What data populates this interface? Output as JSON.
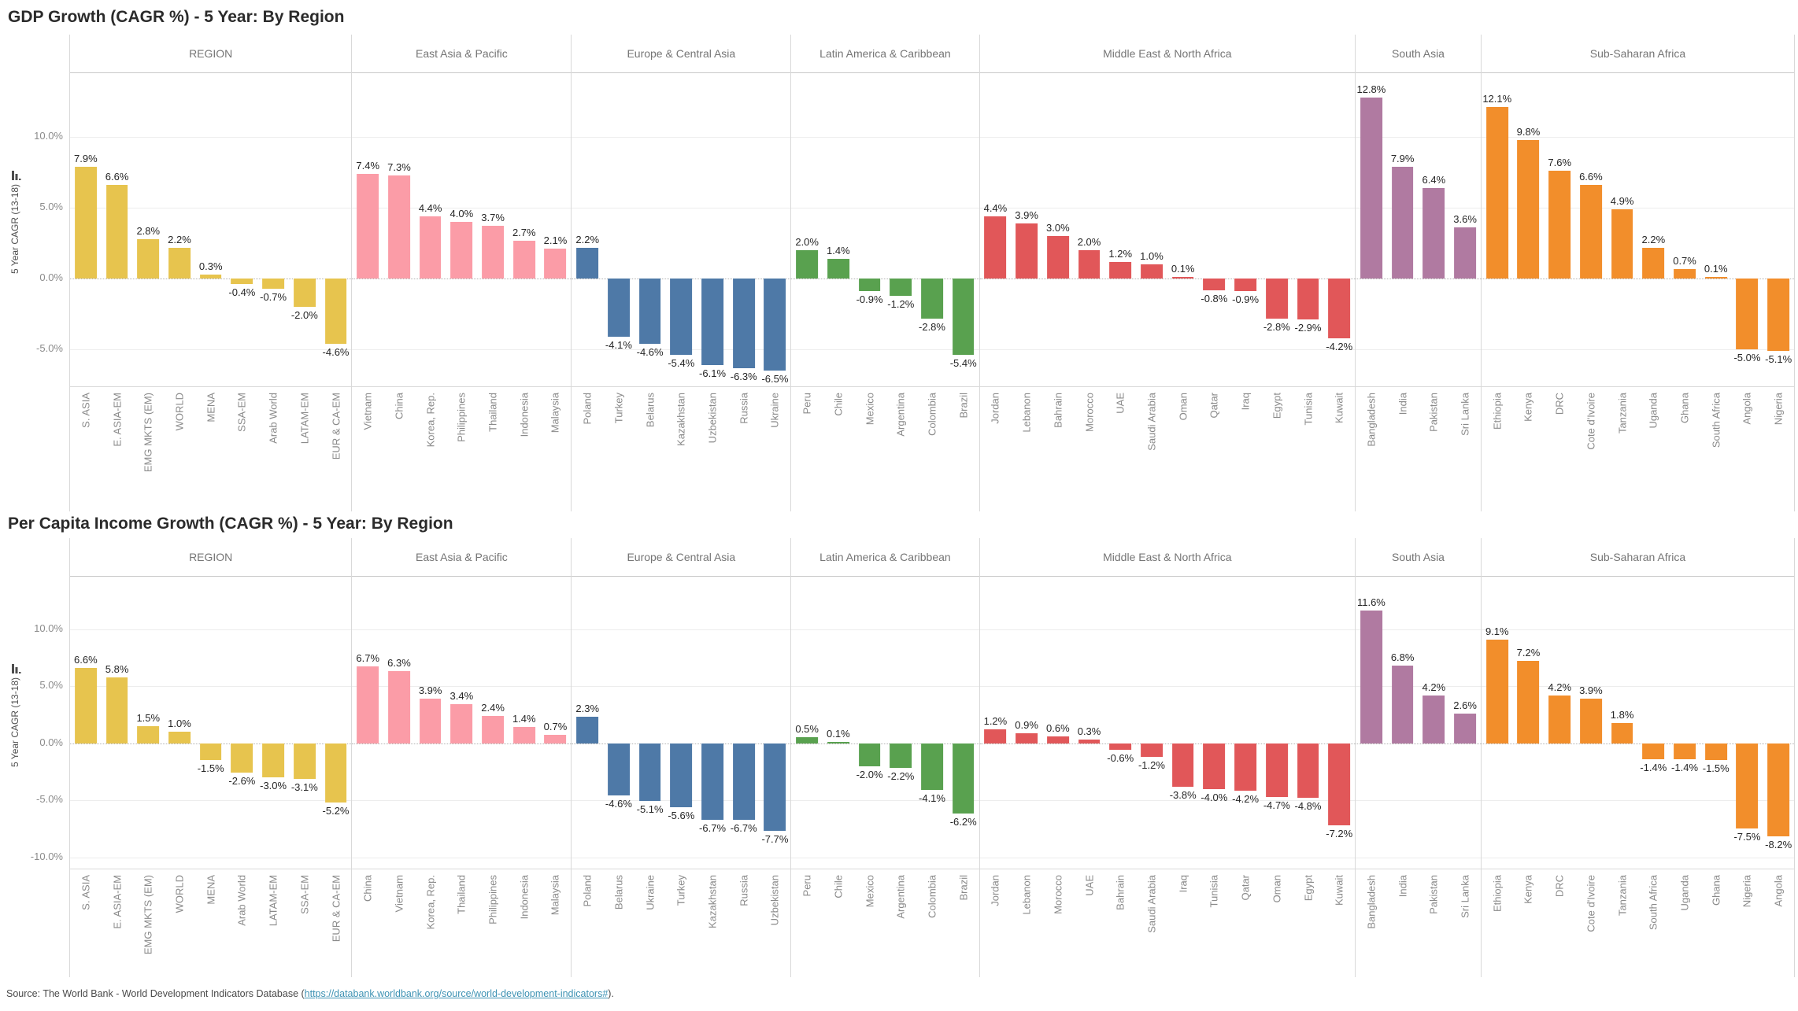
{
  "footer": {
    "prefix": "Source: The World Bank - World Development Indicators Database (",
    "link": "https://databank.worldbank.org/source/world-development-indicators#",
    "suffix": ")."
  },
  "chart_data": [
    {
      "type": "bar",
      "title": "GDP Growth (CAGR %) - 5 Year: By Region",
      "ylabel": "5 Year CAGR (13-18)",
      "ylim": [
        -7.6,
        14.5
      ],
      "grid": true,
      "y_ticks": [
        {
          "value": 10,
          "label": "10.0%"
        },
        {
          "value": 5,
          "label": "5.0%"
        },
        {
          "value": 0,
          "label": "0.0%"
        },
        {
          "value": -5,
          "label": "-5.0%"
        }
      ],
      "groups": [
        {
          "name": "REGION",
          "color": "#E7C44E",
          "categories": [
            "S. ASIA",
            "E. ASIA-EM",
            "EMG MKTS (EM)",
            "WORLD",
            "MENA",
            "SSA-EM",
            "Arab World",
            "LATAM-EM",
            "EUR & CA-EM"
          ],
          "values": [
            7.9,
            6.6,
            2.8,
            2.2,
            0.3,
            -0.4,
            -0.7,
            -2.0,
            -4.6
          ]
        },
        {
          "name": "East Asia & Pacific",
          "color": "#FB9CA7",
          "categories": [
            "Vietnam",
            "China",
            "Korea, Rep.",
            "Philippines",
            "Thailand",
            "Indonesia",
            "Malaysia"
          ],
          "values": [
            7.4,
            7.3,
            4.4,
            4.0,
            3.7,
            2.7,
            2.1
          ]
        },
        {
          "name": "Europe & Central Asia",
          "color": "#4E79A7",
          "categories": [
            "Poland",
            "Turkey",
            "Belarus",
            "Kazakhstan",
            "Uzbekistan",
            "Russia",
            "Ukraine"
          ],
          "values": [
            2.2,
            -4.1,
            -4.6,
            -5.4,
            -6.1,
            -6.3,
            -6.5
          ]
        },
        {
          "name": "Latin America & Caribbean",
          "color": "#59A14F",
          "categories": [
            "Peru",
            "Chile",
            "Mexico",
            "Argentina",
            "Colombia",
            "Brazil"
          ],
          "values": [
            2.0,
            1.4,
            -0.9,
            -1.2,
            -2.8,
            -5.4
          ]
        },
        {
          "name": "Middle East & North Africa",
          "color": "#E15759",
          "categories": [
            "Jordan",
            "Lebanon",
            "Bahrain",
            "Morocco",
            "UAE",
            "Saudi Arabia",
            "Oman",
            "Qatar",
            "Iraq",
            "Egypt",
            "Tunisia",
            "Kuwait"
          ],
          "values": [
            4.4,
            3.9,
            3.0,
            2.0,
            1.2,
            1.0,
            0.1,
            -0.8,
            -0.9,
            -2.8,
            -2.9,
            -4.2
          ]
        },
        {
          "name": "South Asia",
          "color": "#B07AA1",
          "categories": [
            "Bangladesh",
            "India",
            "Pakistan",
            "Sri Lanka"
          ],
          "values": [
            12.8,
            7.9,
            6.4,
            3.6
          ]
        },
        {
          "name": "Sub-Saharan Africa",
          "color": "#F28E2B",
          "categories": [
            "Ethiopia",
            "Kenya",
            "DRC",
            "Cote d'Ivoire",
            "Tanzania",
            "Uganda",
            "Ghana",
            "South Africa",
            "Angola",
            "Nigeria"
          ],
          "values": [
            12.1,
            9.8,
            7.6,
            6.6,
            4.9,
            2.2,
            0.7,
            0.1,
            -5.0,
            -5.1
          ]
        }
      ]
    },
    {
      "type": "bar",
      "title": "Per Capita Income Growth (CAGR %) - 5 Year: By Region",
      "ylabel": "5 Year CAGR (13-18)",
      "ylim": [
        -11.0,
        14.6
      ],
      "grid": true,
      "y_ticks": [
        {
          "value": 10,
          "label": "10.0%"
        },
        {
          "value": 5,
          "label": "5.0%"
        },
        {
          "value": 0,
          "label": "0.0%"
        },
        {
          "value": -5,
          "label": "-5.0%"
        },
        {
          "value": -10,
          "label": "-10.0%"
        }
      ],
      "groups": [
        {
          "name": "REGION",
          "color": "#E7C44E",
          "categories": [
            "S. ASIA",
            "E. ASIA-EM",
            "EMG MKTS (EM)",
            "WORLD",
            "MENA",
            "Arab World",
            "LATAM-EM",
            "SSA-EM",
            "EUR & CA-EM"
          ],
          "values": [
            6.6,
            5.8,
            1.5,
            1.0,
            -1.5,
            -2.6,
            -3.0,
            -3.1,
            -5.2
          ]
        },
        {
          "name": "East Asia & Pacific",
          "color": "#FB9CA7",
          "categories": [
            "China",
            "Vietnam",
            "Korea, Rep.",
            "Thailand",
            "Philippines",
            "Indonesia",
            "Malaysia"
          ],
          "values": [
            6.7,
            6.3,
            3.9,
            3.4,
            2.4,
            1.4,
            0.7
          ]
        },
        {
          "name": "Europe & Central Asia",
          "color": "#4E79A7",
          "categories": [
            "Poland",
            "Belarus",
            "Ukraine",
            "Turkey",
            "Kazakhstan",
            "Russia",
            "Uzbekistan"
          ],
          "values": [
            2.3,
            -4.6,
            -5.1,
            -5.6,
            -6.7,
            -6.7,
            -7.7
          ]
        },
        {
          "name": "Latin America & Caribbean",
          "color": "#59A14F",
          "categories": [
            "Peru",
            "Chile",
            "Mexico",
            "Argentina",
            "Colombia",
            "Brazil"
          ],
          "values": [
            0.5,
            0.1,
            -2.0,
            -2.2,
            -4.1,
            -6.2
          ]
        },
        {
          "name": "Middle East & North Africa",
          "color": "#E15759",
          "categories": [
            "Jordan",
            "Lebanon",
            "Morocco",
            "UAE",
            "Bahrain",
            "Saudi Arabia",
            "Iraq",
            "Tunisia",
            "Qatar",
            "Oman",
            "Egypt",
            "Kuwait"
          ],
          "values": [
            1.2,
            0.9,
            0.6,
            0.3,
            -0.6,
            -1.2,
            -3.8,
            -4.0,
            -4.2,
            -4.7,
            -4.8,
            -7.2
          ]
        },
        {
          "name": "South Asia",
          "color": "#B07AA1",
          "categories": [
            "Bangladesh",
            "India",
            "Pakistan",
            "Sri Lanka"
          ],
          "values": [
            11.6,
            6.8,
            4.2,
            2.6
          ]
        },
        {
          "name": "Sub-Saharan Africa",
          "color": "#F28E2B",
          "categories": [
            "Ethiopia",
            "Kenya",
            "DRC",
            "Cote d'Ivoire",
            "Tanzania",
            "South Africa",
            "Uganda",
            "Ghana",
            "Nigeria",
            "Angola"
          ],
          "values": [
            9.1,
            7.2,
            4.2,
            3.9,
            1.8,
            -1.4,
            -1.4,
            -1.5,
            -7.5,
            -8.2
          ]
        }
      ]
    }
  ]
}
